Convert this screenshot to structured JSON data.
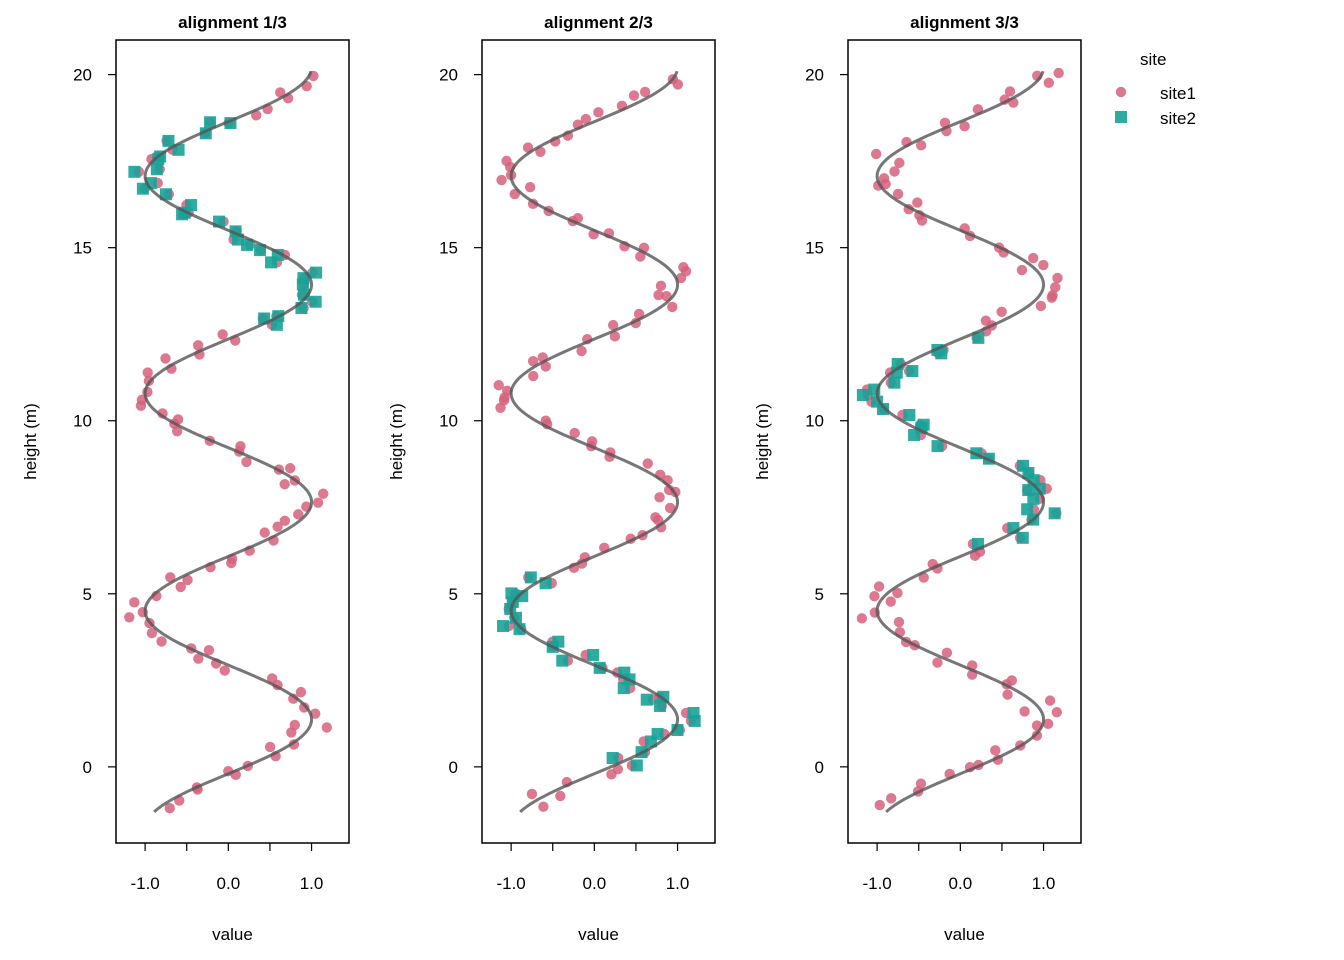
{
  "chart_data": [
    {
      "type": "scatter",
      "title": "alignment 1/3",
      "xlabel": "value",
      "ylabel": "height (m)",
      "xlim": [
        -1.35,
        1.45
      ],
      "ylim": [
        -2.2,
        21.0
      ],
      "xticks": [
        -1.0,
        -0.5,
        0.0,
        0.5,
        1.0
      ],
      "xtick_labels": [
        "-1.0",
        "",
        "0.0",
        "",
        "1.0"
      ],
      "yticks": [
        0,
        5,
        10,
        15,
        20
      ],
      "ytick_labels": [
        "0",
        "5",
        "10",
        "15",
        "20"
      ],
      "curve": {
        "amplitude": 1.0,
        "period": 6.28,
        "phase_height": -0.2,
        "from": -1.3,
        "to": 20.1
      },
      "series": [
        {
          "name": "site1",
          "marker": "circle",
          "color": "#D6607C",
          "x_range": [
            -1.3,
            20.1
          ]
        },
        {
          "name": "site2",
          "marker": "square",
          "color": "#17A398",
          "x_range": [
            12.5,
            18.7
          ]
        }
      ]
    },
    {
      "type": "scatter",
      "title": "alignment 2/3",
      "xlabel": "value",
      "ylabel": "height (m)",
      "xlim": [
        -1.35,
        1.45
      ],
      "ylim": [
        -2.2,
        21.0
      ],
      "xticks": [
        -1.0,
        -0.5,
        0.0,
        0.5,
        1.0
      ],
      "xtick_labels": [
        "-1.0",
        "",
        "0.0",
        "",
        "1.0"
      ],
      "yticks": [
        0,
        5,
        10,
        15,
        20
      ],
      "ytick_labels": [
        "0",
        "5",
        "10",
        "15",
        "20"
      ],
      "curve": {
        "amplitude": 1.0,
        "period": 6.28,
        "phase_height": -0.2,
        "from": -1.3,
        "to": 20.1
      },
      "series": [
        {
          "name": "site1",
          "marker": "circle",
          "color": "#D6607C",
          "x_range": [
            -1.3,
            20.1
          ]
        },
        {
          "name": "site2",
          "marker": "square",
          "color": "#17A398",
          "x_range": [
            0.0,
            5.6
          ]
        }
      ]
    },
    {
      "type": "scatter",
      "title": "alignment 3/3",
      "xlabel": "value",
      "ylabel": "height (m)",
      "xlim": [
        -1.35,
        1.45
      ],
      "ylim": [
        -2.2,
        21.0
      ],
      "xticks": [
        -1.0,
        -0.5,
        0.0,
        0.5,
        1.0
      ],
      "xtick_labels": [
        "-1.0",
        "",
        "0.0",
        "",
        "1.0"
      ],
      "yticks": [
        0,
        5,
        10,
        15,
        20
      ],
      "ytick_labels": [
        "0",
        "5",
        "10",
        "15",
        "20"
      ],
      "curve": {
        "amplitude": 1.0,
        "period": 6.28,
        "phase_height": -0.2,
        "from": -1.3,
        "to": 20.1
      },
      "series": [
        {
          "name": "site1",
          "marker": "circle",
          "color": "#D6607C",
          "x_range": [
            -1.3,
            20.1
          ]
        },
        {
          "name": "site2",
          "marker": "square",
          "color": "#17A398",
          "x_range": [
            6.3,
            12.4
          ]
        }
      ]
    }
  ],
  "legend": {
    "title": "site",
    "placement": "top-right outside",
    "entries": [
      {
        "label": "site1",
        "marker": "circle",
        "color": "#D6607C"
      },
      {
        "label": "site2",
        "marker": "square",
        "color": "#17A398"
      }
    ]
  }
}
